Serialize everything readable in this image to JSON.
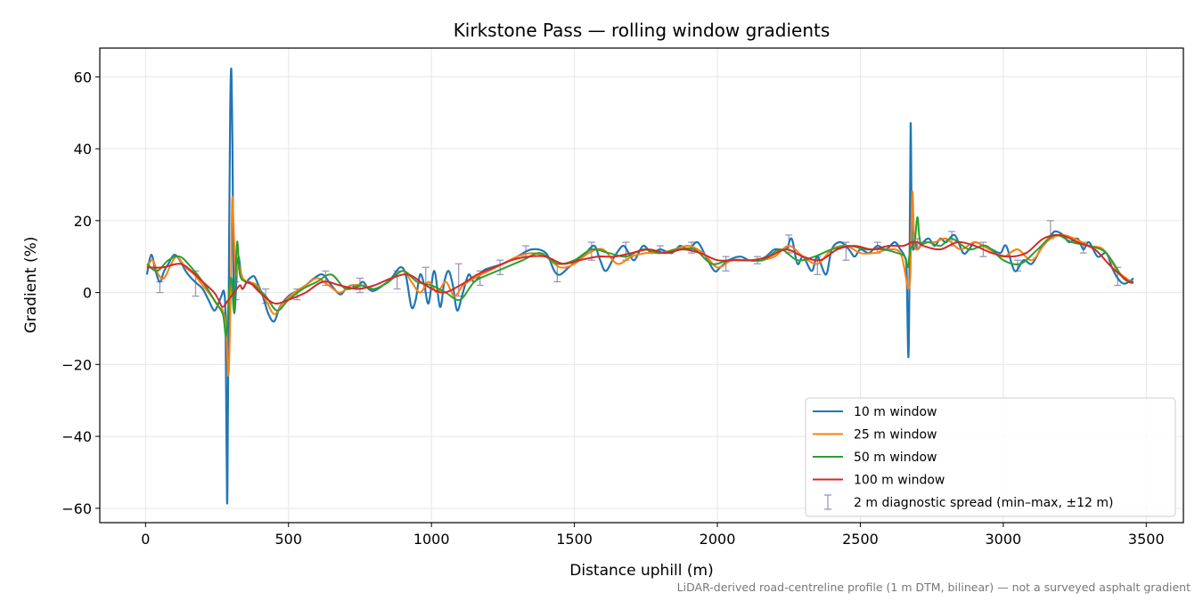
{
  "chart_data": {
    "type": "line",
    "title": "Kirkstone Pass — rolling window gradients",
    "xlabel": "Distance uphill (m)",
    "ylabel": "Gradient (%)",
    "xlim": [
      -160,
      3630
    ],
    "ylim": [
      -64,
      68
    ],
    "xticks": [
      0,
      500,
      1000,
      1500,
      2000,
      2500,
      3000,
      3500
    ],
    "yticks": [
      -60,
      -40,
      -20,
      0,
      20,
      40,
      60
    ],
    "xtick_labels": [
      "0",
      "500",
      "1000",
      "1500",
      "2000",
      "2500",
      "3000",
      "3500"
    ],
    "ytick_labels": [
      "−60",
      "−40",
      "−20",
      "0",
      "20",
      "40",
      "60"
    ],
    "grid": true,
    "legend_position": "lower-right",
    "footnote": "LiDAR-derived road-centreline profile (1 m DTM, bilinear) — not a surveyed asphalt gradient",
    "series": [
      {
        "name": "10 m window",
        "color": "#1f77b4",
        "x": [
          5,
          20,
          35,
          50,
          65,
          80,
          100,
          120,
          140,
          160,
          180,
          200,
          220,
          240,
          255,
          265,
          275,
          280,
          285,
          288,
          292,
          296,
          300,
          304,
          308,
          312,
          318,
          325,
          335,
          350,
          365,
          380,
          395,
          410,
          430,
          450,
          470,
          500,
          530,
          560,
          590,
          620,
          650,
          680,
          700,
          720,
          740,
          760,
          780,
          800,
          830,
          860,
          890,
          910,
          930,
          945,
          960,
          975,
          990,
          1010,
          1030,
          1045,
          1060,
          1075,
          1090,
          1110,
          1130,
          1150,
          1180,
          1210,
          1250,
          1300,
          1350,
          1400,
          1430,
          1450,
          1480,
          1510,
          1540,
          1570,
          1590,
          1610,
          1640,
          1670,
          1690,
          1710,
          1740,
          1770,
          1800,
          1840,
          1870,
          1900,
          1930,
          1960,
          1990,
          2010,
          2040,
          2080,
          2110,
          2140,
          2170,
          2200,
          2240,
          2260,
          2280,
          2300,
          2330,
          2350,
          2380,
          2400,
          2430,
          2460,
          2480,
          2500,
          2530,
          2560,
          2590,
          2620,
          2640,
          2655,
          2662,
          2668,
          2672,
          2676,
          2680,
          2685,
          2692,
          2700,
          2720,
          2740,
          2760,
          2780,
          2800,
          2830,
          2860,
          2880,
          2900,
          2930,
          2960,
          2990,
          3010,
          3040,
          3070,
          3100,
          3130,
          3160,
          3180,
          3210,
          3230,
          3260,
          3280,
          3300,
          3330,
          3360,
          3380,
          3400,
          3420,
          3440,
          3455
        ],
        "y": [
          5,
          10.5,
          6,
          3,
          6,
          8,
          10.5,
          9,
          6,
          4,
          2.5,
          1,
          -2,
          -5,
          -3,
          -1,
          0,
          -10,
          -58,
          -35,
          10,
          50,
          62,
          40,
          0,
          -5,
          4,
          10,
          5,
          3,
          4,
          4.5,
          2,
          -1,
          -6,
          -8,
          -4,
          -1,
          0.5,
          2,
          4,
          5,
          2,
          -0.5,
          1,
          2,
          1.5,
          3,
          1,
          0.5,
          2,
          4,
          7,
          5,
          -4,
          -2,
          5,
          2,
          -3,
          6,
          -4,
          3,
          6,
          2,
          -5,
          0,
          5,
          3,
          6,
          7,
          8,
          10,
          12,
          11,
          6,
          5,
          7,
          9,
          11,
          13,
          9,
          6,
          10,
          13,
          11,
          9,
          13,
          11,
          12,
          11,
          13,
          12,
          14,
          10,
          6,
          7,
          9,
          10,
          9,
          9,
          10,
          12,
          12,
          15,
          8,
          10,
          6,
          10,
          5,
          12,
          14,
          12,
          10,
          12,
          11,
          13,
          12,
          14,
          12,
          10,
          6,
          -18,
          5,
          47,
          18,
          12,
          14,
          12,
          14,
          15,
          13,
          15,
          14,
          16,
          11,
          12,
          14,
          13,
          12,
          11,
          13,
          6,
          9,
          8,
          12,
          15,
          17,
          16,
          14,
          15,
          12,
          14,
          10,
          11,
          7,
          4,
          2.5,
          3,
          4
        ]
      },
      {
        "name": "25 m window",
        "color": "#ff7f0e",
        "x": [
          5,
          25,
          45,
          65,
          90,
          110,
          140,
          170,
          200,
          230,
          255,
          270,
          282,
          290,
          298,
          303,
          308,
          315,
          325,
          340,
          360,
          390,
          420,
          450,
          480,
          520,
          560,
          600,
          640,
          680,
          720,
          760,
          800,
          850,
          900,
          930,
          960,
          990,
          1020,
          1050,
          1080,
          1110,
          1150,
          1200,
          1250,
          1300,
          1350,
          1400,
          1450,
          1500,
          1550,
          1600,
          1650,
          1700,
          1750,
          1800,
          1850,
          1900,
          1950,
          2000,
          2050,
          2100,
          2150,
          2200,
          2250,
          2300,
          2350,
          2400,
          2450,
          2500,
          2550,
          2600,
          2640,
          2660,
          2668,
          2675,
          2682,
          2688,
          2695,
          2710,
          2730,
          2760,
          2800,
          2850,
          2900,
          2950,
          3000,
          3050,
          3100,
          3150,
          3200,
          3250,
          3300,
          3350,
          3400,
          3430,
          3455
        ],
        "y": [
          7,
          9,
          5,
          4,
          8,
          10,
          7,
          5,
          2,
          -1,
          -4,
          -5,
          -10,
          -23,
          0,
          26,
          18,
          5,
          8,
          4,
          3,
          2,
          -2,
          -6,
          -3,
          0,
          2,
          4,
          2,
          0,
          2,
          2,
          1,
          3,
          6,
          3,
          0,
          3,
          0,
          3,
          -1,
          2,
          4,
          6,
          8,
          10,
          11,
          10,
          7,
          8,
          11,
          12,
          8,
          10,
          11,
          11,
          12,
          13,
          11,
          7,
          9,
          9,
          9,
          10,
          13,
          10,
          8,
          12,
          13,
          11,
          11,
          12,
          11,
          4,
          1,
          5,
          28,
          15,
          12,
          13,
          14,
          14,
          15,
          12,
          14,
          12,
          10,
          12,
          9,
          14,
          16,
          15,
          13,
          12,
          6,
          4,
          2.5
        ]
      },
      {
        "name": "50 m window",
        "color": "#2ca02c",
        "x": [
          5,
          40,
          80,
          120,
          160,
          200,
          240,
          270,
          282,
          292,
          300,
          310,
          320,
          330,
          350,
          380,
          420,
          460,
          500,
          550,
          600,
          650,
          700,
          750,
          800,
          850,
          900,
          950,
          1000,
          1050,
          1100,
          1150,
          1200,
          1260,
          1320,
          1380,
          1440,
          1500,
          1560,
          1620,
          1680,
          1740,
          1800,
          1860,
          1920,
          1980,
          2040,
          2100,
          2160,
          2220,
          2280,
          2340,
          2400,
          2460,
          2520,
          2580,
          2630,
          2655,
          2665,
          2675,
          2690,
          2700,
          2710,
          2740,
          2780,
          2820,
          2880,
          2940,
          3000,
          3060,
          3120,
          3180,
          3240,
          3300,
          3360,
          3420,
          3455
        ],
        "y": [
          8,
          6,
          9,
          10,
          7,
          3,
          -2,
          -6,
          -12,
          0,
          4,
          -5,
          14,
          5,
          3,
          2,
          -1,
          -5,
          -2,
          1,
          3,
          5,
          1,
          2,
          1,
          3,
          6,
          3,
          2,
          0,
          -2,
          3,
          5,
          7,
          9,
          11,
          8,
          9,
          12,
          11,
          10,
          12,
          11,
          12,
          12,
          8,
          9,
          9,
          9,
          12,
          9,
          10,
          12,
          13,
          12,
          12,
          11,
          10,
          7,
          12,
          14,
          21,
          14,
          14,
          13,
          15,
          12,
          13,
          9,
          8,
          12,
          16,
          14,
          13,
          11,
          4,
          3
        ]
      },
      {
        "name": "100 m window",
        "color": "#d62728",
        "x": [
          5,
          60,
          120,
          160,
          200,
          240,
          255,
          270,
          290,
          310,
          330,
          340,
          360,
          400,
          450,
          500,
          560,
          620,
          680,
          740,
          800,
          860,
          920,
          980,
          1040,
          1100,
          1160,
          1220,
          1280,
          1340,
          1400,
          1460,
          1520,
          1580,
          1640,
          1700,
          1760,
          1820,
          1880,
          1940,
          2000,
          2060,
          2120,
          2180,
          2240,
          2300,
          2360,
          2420,
          2480,
          2540,
          2600,
          2650,
          2680,
          2700,
          2720,
          2780,
          2840,
          2900,
          2960,
          3020,
          3080,
          3140,
          3200,
          3260,
          3320,
          3380,
          3440,
          3455
        ],
        "y": [
          7,
          7,
          8,
          6,
          3,
          0,
          -2,
          -4,
          -2,
          0,
          2,
          1,
          3,
          0,
          -3,
          -2,
          0,
          3,
          2,
          1,
          2,
          4,
          5,
          2,
          0,
          2,
          5,
          7,
          9,
          10,
          10,
          8,
          9,
          10,
          10,
          11,
          12,
          11,
          12,
          11,
          9,
          9,
          9,
          10,
          12,
          10,
          9,
          12,
          13,
          12,
          13,
          13,
          14,
          14,
          13,
          12,
          14,
          13,
          11,
          10,
          11,
          15,
          16,
          14,
          12,
          7,
          3,
          3
        ]
      }
    ],
    "error_bars": {
      "name": "2 m diagnostic spread (min–max, ±12 m)",
      "color": "#9999bb",
      "x": [
        50,
        175,
        315,
        420,
        530,
        630,
        750,
        880,
        980,
        1095,
        1170,
        1240,
        1330,
        1440,
        1560,
        1680,
        1800,
        1910,
        2030,
        2140,
        2250,
        2350,
        2450,
        2560,
        2700,
        2820,
        2930,
        3050,
        3165,
        3280,
        3400
      ],
      "low": [
        0,
        -1,
        -2,
        -3,
        -2,
        2,
        0,
        1,
        0,
        -1,
        2,
        5,
        10,
        3,
        9,
        9,
        11,
        11,
        6,
        8,
        11,
        5,
        9,
        11,
        13,
        13,
        10,
        6,
        15,
        11,
        2
      ],
      "high": [
        3,
        6,
        3,
        1,
        1,
        6,
        4,
        6,
        7,
        8,
        6,
        9,
        13,
        8,
        14,
        14,
        13,
        14,
        10,
        10,
        16,
        10,
        14,
        14,
        15,
        17,
        14,
        9,
        20,
        14,
        7
      ]
    }
  }
}
